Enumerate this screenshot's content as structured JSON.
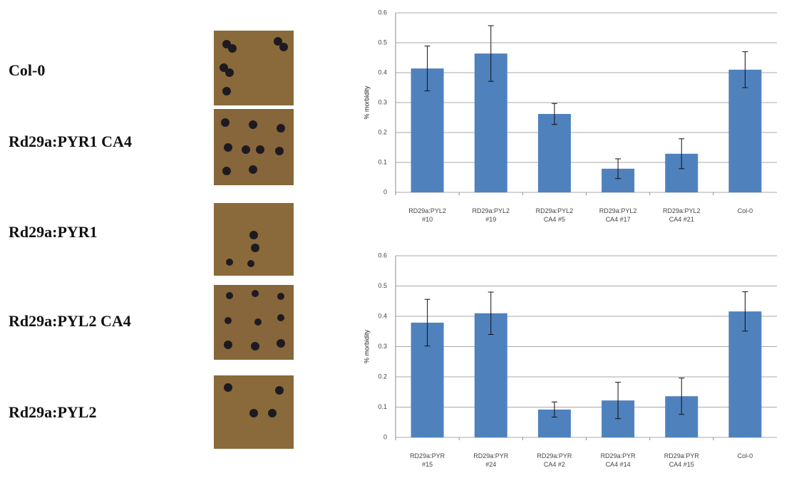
{
  "photo_labels": [
    "Col-0",
    "Rd29a:PYR1 CA4",
    "Rd29a:PYR1",
    "Rd29a:PYL2 CA4",
    "Rd29a:PYL2"
  ],
  "chart_data": [
    {
      "type": "bar",
      "y_label": "% morbidity",
      "categories": [
        "RD29a:PYL2\n#10",
        "RD29a:PYL2\n#19",
        "RD29a:PYL2\nCA4 #5",
        "RD29a:PYL2\nCA4 #17",
        "RD29a:PYL2\nCA4 #21",
        "Col-0"
      ],
      "values": [
        0.414,
        0.464,
        0.262,
        0.079,
        0.129,
        0.41
      ],
      "errors": [
        0.075,
        0.093,
        0.035,
        0.033,
        0.05,
        0.06
      ],
      "color": "#4f81bd",
      "ylim": [
        0,
        0.6
      ],
      "yticks": [
        0,
        0.1,
        0.2,
        0.3,
        0.4,
        0.5,
        0.6
      ],
      "grid": true
    },
    {
      "type": "bar",
      "y_label": "% morbidity",
      "categories": [
        "RD29a:PYR\n#15",
        "RD29a:PYR\n#24",
        "RD29a:PYR\nCA4 #2",
        "RD29a:PYR\nCA4 #14",
        "RD29a:PYR\nCA4 #15",
        "Col-0"
      ],
      "values": [
        0.379,
        0.41,
        0.092,
        0.122,
        0.136,
        0.416
      ],
      "errors": [
        0.077,
        0.07,
        0.025,
        0.06,
        0.06,
        0.065
      ],
      "color": "#4f81bd",
      "ylim": [
        0,
        0.6
      ],
      "yticks": [
        0,
        0.1,
        0.2,
        0.3,
        0.4,
        0.5,
        0.6
      ],
      "grid": true
    }
  ]
}
